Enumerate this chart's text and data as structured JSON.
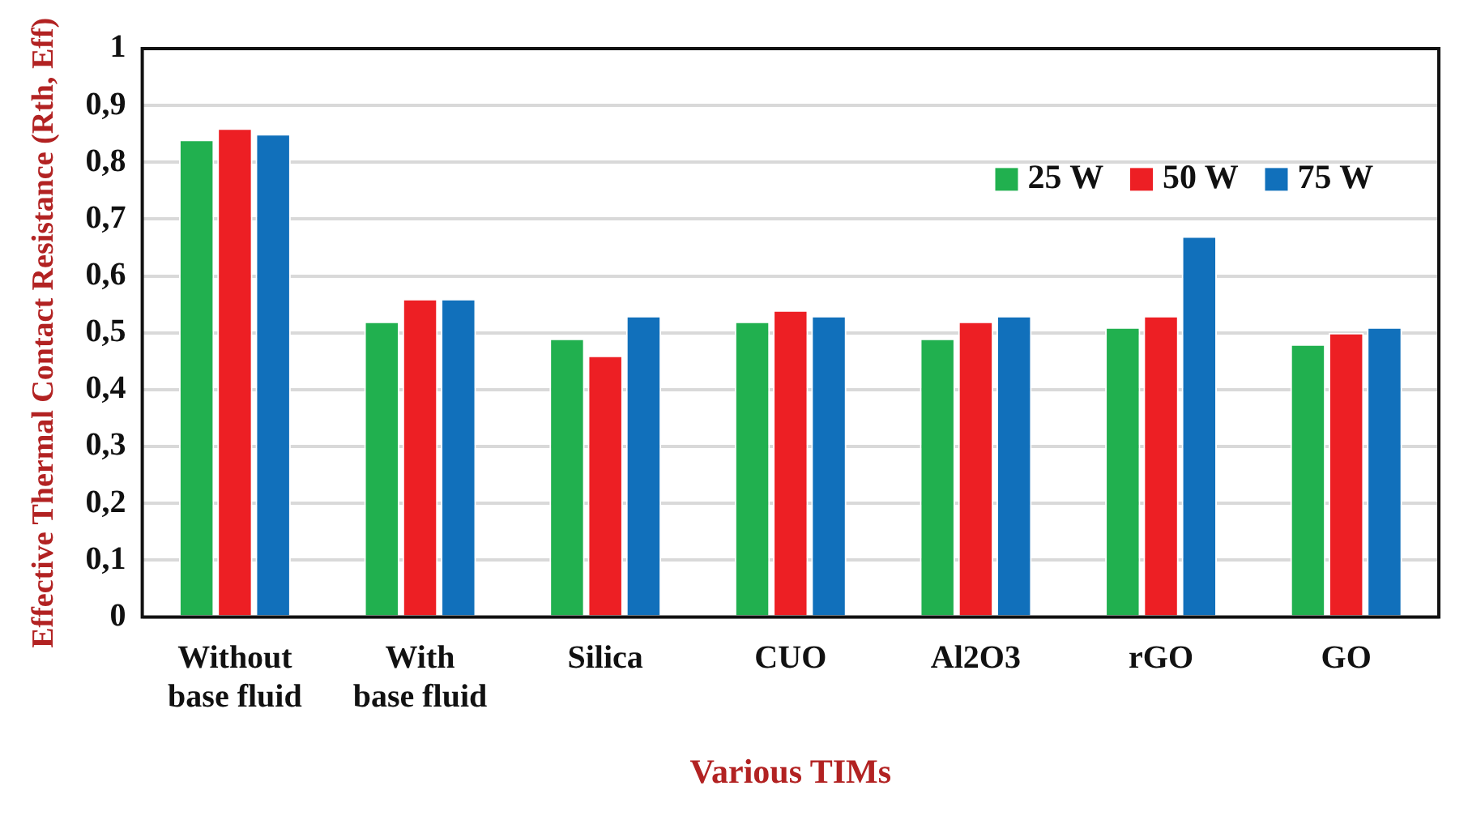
{
  "chart_data": {
    "type": "bar",
    "xlabel": "Various TIMs",
    "ylabel": "Effective Thermal Contact Resistance (Rth, Eff)",
    "categories": [
      "Without base fluid",
      "With base fluid",
      "Silica",
      "CUO",
      "Al2O3",
      "rGO",
      "GO"
    ],
    "series": [
      {
        "name": "25 W",
        "color": "#21b04f",
        "values": [
          0.84,
          0.52,
          0.49,
          0.52,
          0.49,
          0.51,
          0.48
        ]
      },
      {
        "name": "50 W",
        "color": "#ed1f24",
        "values": [
          0.86,
          0.56,
          0.46,
          0.54,
          0.52,
          0.53,
          0.5
        ]
      },
      {
        "name": "75 W",
        "color": "#1170bb",
        "values": [
          0.85,
          0.56,
          0.53,
          0.53,
          0.53,
          0.67,
          0.51
        ]
      }
    ],
    "ylim": [
      0,
      1
    ],
    "yticks": [
      {
        "value": 0,
        "label": "0"
      },
      {
        "value": 0.1,
        "label": "0,1"
      },
      {
        "value": 0.2,
        "label": "0,2"
      },
      {
        "value": 0.3,
        "label": "0,3"
      },
      {
        "value": 0.4,
        "label": "0,4"
      },
      {
        "value": 0.5,
        "label": "0,5"
      },
      {
        "value": 0.6,
        "label": "0,6"
      },
      {
        "value": 0.7,
        "label": "0,7"
      },
      {
        "value": 0.8,
        "label": "0,8"
      },
      {
        "value": 0.9,
        "label": "0,9"
      },
      {
        "value": 1,
        "label": "1"
      }
    ],
    "grid": "y",
    "legend": "top right"
  }
}
